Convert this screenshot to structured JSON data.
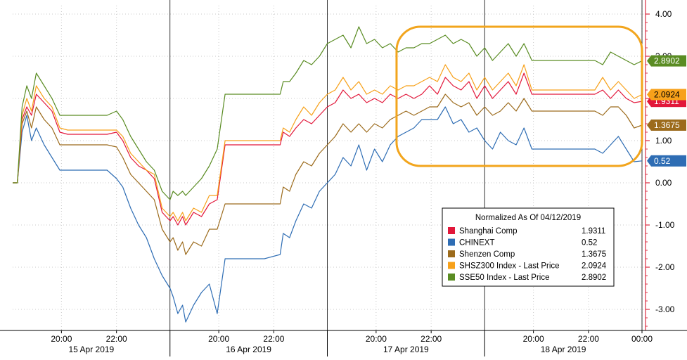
{
  "chart_data": {
    "type": "line",
    "title": "",
    "xlabel": "",
    "ylabel": "",
    "ylim": [
      -3.5,
      4.2
    ],
    "yticks": [
      "4.00",
      "3.00",
      "2.00",
      "1.00",
      "0.00",
      "-1.00",
      "-2.00",
      "-3.00"
    ],
    "y_tick_values": [
      4,
      3,
      2,
      1,
      0,
      -1,
      -2,
      -3
    ],
    "xlim": [
      0,
      4
    ],
    "x_unit": "trading day index (0 = 15 Apr 2019 start, 4 = 18 Apr 2019 end)",
    "time_ticks": [
      {
        "x": 0.31,
        "label": "20:00"
      },
      {
        "x": 0.66,
        "label": "22:00"
      },
      {
        "x": 1.31,
        "label": "20:00"
      },
      {
        "x": 1.66,
        "label": "22:00"
      },
      {
        "x": 2.31,
        "label": "20:00"
      },
      {
        "x": 2.66,
        "label": "22:00"
      },
      {
        "x": 3.31,
        "label": "20:00"
      },
      {
        "x": 3.66,
        "label": "22:00"
      },
      {
        "x": 4.0,
        "label": "00:00"
      }
    ],
    "date_labels": [
      {
        "x": 0.5,
        "label": "15 Apr 2019"
      },
      {
        "x": 1.5,
        "label": "16 Apr 2019"
      },
      {
        "x": 2.5,
        "label": "17 Apr 2019"
      },
      {
        "x": 3.5,
        "label": "18 Apr 2019"
      }
    ],
    "day_separators": [
      1,
      2,
      3
    ],
    "grid": true,
    "legend": {
      "title": "Normalized As Of 04/12/2019",
      "placement": "bottom-right"
    },
    "highlight_box": {
      "x_range": [
        2.44,
        4.0
      ],
      "y_range": [
        0.4,
        3.7
      ],
      "color": "#F2A51D"
    },
    "series": [
      {
        "name": "Shanghai Comp",
        "last": "1.9311",
        "color": "#E2173A",
        "x": [
          0.0,
          0.03,
          0.06,
          0.09,
          0.12,
          0.15,
          0.2,
          0.25,
          0.3,
          0.35,
          0.4,
          0.5,
          0.6,
          0.66,
          0.7,
          0.75,
          0.8,
          0.85,
          0.9,
          0.95,
          1.0,
          1.02,
          1.05,
          1.08,
          1.1,
          1.15,
          1.2,
          1.25,
          1.3,
          1.35,
          1.4,
          1.45,
          1.5,
          1.55,
          1.6,
          1.7,
          1.72,
          1.76,
          1.8,
          1.85,
          1.9,
          1.95,
          2.0,
          2.05,
          2.1,
          2.15,
          2.2,
          2.25,
          2.3,
          2.35,
          2.4,
          2.45,
          2.5,
          2.55,
          2.6,
          2.65,
          2.7,
          2.75,
          2.8,
          2.85,
          2.9,
          2.95,
          3.0,
          3.05,
          3.1,
          3.15,
          3.2,
          3.25,
          3.3,
          3.4,
          3.5,
          3.6,
          3.65,
          3.7,
          3.75,
          3.8,
          3.85,
          3.9,
          3.95,
          4.0
        ],
        "values": [
          0.0,
          0.0,
          1.5,
          1.8,
          1.6,
          2.1,
          1.9,
          1.7,
          1.2,
          1.15,
          1.15,
          1.15,
          1.15,
          1.2,
          1.0,
          0.6,
          0.4,
          0.3,
          0.1,
          -0.7,
          -0.9,
          -0.8,
          -1.0,
          -0.8,
          -1.0,
          -0.7,
          -0.8,
          -0.5,
          -0.4,
          0.9,
          0.9,
          0.9,
          0.9,
          0.9,
          0.9,
          0.9,
          1.2,
          1.1,
          1.3,
          1.5,
          1.4,
          1.6,
          1.8,
          1.9,
          2.2,
          2.0,
          2.1,
          1.9,
          2.0,
          1.9,
          2.1,
          2.0,
          2.1,
          2.0,
          2.1,
          2.3,
          2.1,
          2.5,
          2.3,
          2.2,
          2.4,
          2.0,
          2.3,
          2.0,
          2.2,
          2.4,
          2.1,
          2.6,
          2.1,
          2.1,
          2.1,
          2.1,
          2.1,
          2.1,
          2.2,
          2.0,
          2.2,
          2.0,
          1.9,
          1.93
        ]
      },
      {
        "name": "CHINEXT",
        "last": "0.52",
        "color": "#2E6DB4",
        "x": [
          0.0,
          0.03,
          0.06,
          0.09,
          0.12,
          0.15,
          0.2,
          0.25,
          0.3,
          0.35,
          0.4,
          0.5,
          0.6,
          0.66,
          0.7,
          0.75,
          0.8,
          0.85,
          0.9,
          0.95,
          1.0,
          1.02,
          1.05,
          1.08,
          1.1,
          1.15,
          1.2,
          1.25,
          1.3,
          1.35,
          1.4,
          1.45,
          1.5,
          1.55,
          1.6,
          1.7,
          1.72,
          1.76,
          1.8,
          1.85,
          1.9,
          1.95,
          2.0,
          2.05,
          2.1,
          2.15,
          2.2,
          2.25,
          2.3,
          2.35,
          2.4,
          2.45,
          2.5,
          2.55,
          2.6,
          2.65,
          2.7,
          2.75,
          2.8,
          2.85,
          2.9,
          2.95,
          3.0,
          3.05,
          3.1,
          3.15,
          3.2,
          3.25,
          3.3,
          3.4,
          3.5,
          3.6,
          3.65,
          3.7,
          3.75,
          3.8,
          3.85,
          3.9,
          3.95,
          4.0
        ],
        "values": [
          0.0,
          0.0,
          1.2,
          1.6,
          1.0,
          1.3,
          0.9,
          0.6,
          0.3,
          0.3,
          0.3,
          0.3,
          0.3,
          0.1,
          -0.1,
          -0.6,
          -1.0,
          -1.3,
          -1.8,
          -2.2,
          -2.5,
          -2.7,
          -3.1,
          -2.9,
          -3.3,
          -2.9,
          -2.6,
          -2.4,
          -3.1,
          -1.8,
          -1.8,
          -1.8,
          -1.8,
          -1.8,
          -1.8,
          -1.7,
          -1.2,
          -1.3,
          -0.9,
          -0.5,
          -0.6,
          -0.2,
          0.0,
          0.2,
          0.6,
          0.4,
          0.9,
          0.3,
          0.8,
          0.5,
          0.9,
          1.1,
          1.2,
          1.3,
          1.5,
          1.5,
          1.5,
          1.8,
          1.4,
          1.5,
          1.2,
          1.3,
          1.0,
          0.8,
          1.2,
          1.0,
          0.9,
          1.3,
          0.8,
          0.8,
          0.8,
          0.8,
          0.8,
          0.8,
          0.7,
          0.9,
          1.1,
          0.8,
          0.5,
          0.52
        ]
      },
      {
        "name": "Shenzen Comp",
        "last": "1.3675",
        "color": "#9C6B1C",
        "x": [
          0.0,
          0.03,
          0.06,
          0.09,
          0.12,
          0.15,
          0.2,
          0.25,
          0.3,
          0.35,
          0.4,
          0.5,
          0.6,
          0.66,
          0.7,
          0.75,
          0.8,
          0.85,
          0.9,
          0.95,
          1.0,
          1.02,
          1.05,
          1.08,
          1.1,
          1.15,
          1.2,
          1.25,
          1.3,
          1.35,
          1.4,
          1.45,
          1.5,
          1.55,
          1.6,
          1.7,
          1.72,
          1.76,
          1.8,
          1.85,
          1.9,
          1.95,
          2.0,
          2.05,
          2.1,
          2.15,
          2.2,
          2.25,
          2.3,
          2.35,
          2.4,
          2.45,
          2.5,
          2.55,
          2.6,
          2.65,
          2.7,
          2.75,
          2.8,
          2.85,
          2.9,
          2.95,
          3.0,
          3.05,
          3.1,
          3.15,
          3.2,
          3.25,
          3.3,
          3.4,
          3.5,
          3.6,
          3.65,
          3.7,
          3.75,
          3.8,
          3.85,
          3.9,
          3.95,
          4.0
        ],
        "values": [
          0.0,
          0.0,
          1.4,
          1.7,
          1.3,
          1.8,
          1.5,
          1.3,
          0.9,
          0.9,
          0.9,
          0.9,
          0.9,
          0.85,
          0.6,
          0.2,
          0.0,
          -0.2,
          -0.4,
          -1.1,
          -1.4,
          -1.3,
          -1.6,
          -1.4,
          -1.7,
          -1.4,
          -1.5,
          -1.1,
          -1.1,
          -0.5,
          -0.5,
          -0.5,
          -0.5,
          -0.5,
          -0.5,
          -0.5,
          -0.1,
          -0.2,
          0.2,
          0.5,
          0.4,
          0.7,
          0.9,
          1.1,
          1.4,
          1.2,
          1.4,
          1.2,
          1.4,
          1.3,
          1.5,
          1.6,
          1.7,
          1.6,
          1.7,
          1.8,
          1.8,
          2.1,
          1.9,
          1.8,
          1.9,
          1.6,
          1.8,
          1.6,
          1.7,
          1.9,
          1.7,
          2.0,
          1.7,
          1.7,
          1.7,
          1.7,
          1.7,
          1.7,
          1.6,
          1.8,
          1.8,
          1.6,
          1.3,
          1.3675
        ]
      },
      {
        "name": "SHSZ300 Index - Last Price",
        "last": "2.0924",
        "color": "#F7A11A",
        "x": [
          0.0,
          0.03,
          0.06,
          0.09,
          0.12,
          0.15,
          0.2,
          0.25,
          0.3,
          0.35,
          0.4,
          0.5,
          0.6,
          0.66,
          0.7,
          0.75,
          0.8,
          0.85,
          0.9,
          0.95,
          1.0,
          1.02,
          1.05,
          1.08,
          1.1,
          1.15,
          1.2,
          1.25,
          1.3,
          1.35,
          1.4,
          1.45,
          1.5,
          1.55,
          1.6,
          1.7,
          1.72,
          1.76,
          1.8,
          1.85,
          1.9,
          1.95,
          2.0,
          2.05,
          2.1,
          2.15,
          2.2,
          2.25,
          2.3,
          2.35,
          2.4,
          2.45,
          2.5,
          2.55,
          2.6,
          2.65,
          2.7,
          2.75,
          2.8,
          2.85,
          2.9,
          2.95,
          3.0,
          3.05,
          3.1,
          3.15,
          3.2,
          3.25,
          3.3,
          3.4,
          3.5,
          3.6,
          3.65,
          3.7,
          3.75,
          3.8,
          3.85,
          3.9,
          3.95,
          4.0
        ],
        "values": [
          0.0,
          0.0,
          1.6,
          2.0,
          1.7,
          2.3,
          2.0,
          1.8,
          1.3,
          1.25,
          1.25,
          1.25,
          1.25,
          1.25,
          1.1,
          0.7,
          0.5,
          0.3,
          0.2,
          -0.6,
          -0.8,
          -0.7,
          -0.9,
          -0.7,
          -0.9,
          -0.6,
          -0.7,
          -0.3,
          -0.3,
          1.0,
          1.0,
          1.0,
          1.0,
          1.0,
          1.0,
          1.0,
          1.3,
          1.2,
          1.5,
          1.8,
          1.6,
          1.9,
          2.1,
          2.2,
          2.5,
          2.2,
          2.4,
          2.1,
          2.2,
          2.1,
          2.3,
          2.2,
          2.3,
          2.3,
          2.4,
          2.5,
          2.4,
          2.8,
          2.5,
          2.4,
          2.6,
          2.2,
          2.5,
          2.2,
          2.4,
          2.6,
          2.3,
          2.8,
          2.2,
          2.2,
          2.2,
          2.2,
          2.2,
          2.2,
          2.5,
          2.2,
          2.4,
          2.2,
          2.0,
          2.0924
        ]
      },
      {
        "name": "SSE50 Index - Last Price",
        "last": "2.8902",
        "color": "#5A8C23",
        "x": [
          0.0,
          0.03,
          0.06,
          0.09,
          0.12,
          0.15,
          0.2,
          0.25,
          0.3,
          0.35,
          0.4,
          0.5,
          0.6,
          0.66,
          0.7,
          0.75,
          0.8,
          0.85,
          0.9,
          0.95,
          1.0,
          1.02,
          1.05,
          1.08,
          1.1,
          1.15,
          1.2,
          1.25,
          1.3,
          1.35,
          1.4,
          1.45,
          1.5,
          1.55,
          1.6,
          1.7,
          1.72,
          1.76,
          1.8,
          1.85,
          1.9,
          1.95,
          2.0,
          2.05,
          2.1,
          2.15,
          2.2,
          2.25,
          2.3,
          2.35,
          2.4,
          2.45,
          2.5,
          2.55,
          2.6,
          2.65,
          2.7,
          2.75,
          2.8,
          2.85,
          2.9,
          2.95,
          3.0,
          3.05,
          3.1,
          3.15,
          3.2,
          3.25,
          3.3,
          3.4,
          3.5,
          3.6,
          3.65,
          3.7,
          3.75,
          3.8,
          3.85,
          3.9,
          3.95,
          4.0
        ],
        "values": [
          0.0,
          0.0,
          1.8,
          2.3,
          2.0,
          2.6,
          2.3,
          2.0,
          1.6,
          1.6,
          1.6,
          1.6,
          1.6,
          1.7,
          1.5,
          1.1,
          0.8,
          0.5,
          0.3,
          -0.2,
          -0.4,
          -0.2,
          -0.3,
          -0.2,
          -0.3,
          -0.1,
          0.1,
          0.4,
          0.8,
          2.1,
          2.1,
          2.1,
          2.1,
          2.1,
          2.1,
          2.1,
          2.4,
          2.4,
          2.6,
          2.9,
          2.8,
          3.0,
          3.3,
          3.4,
          3.5,
          3.2,
          3.7,
          3.3,
          3.4,
          3.2,
          3.3,
          3.1,
          3.2,
          3.2,
          3.3,
          3.3,
          3.4,
          3.5,
          3.3,
          3.4,
          3.3,
          3.0,
          3.2,
          2.9,
          3.1,
          3.3,
          3.0,
          3.3,
          2.9,
          2.9,
          2.9,
          2.9,
          2.9,
          2.9,
          2.8,
          3.1,
          3.0,
          2.9,
          2.8,
          2.8902
        ]
      }
    ]
  }
}
